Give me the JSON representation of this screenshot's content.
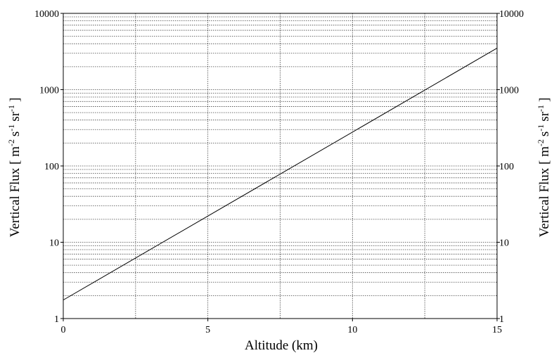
{
  "chart_data": {
    "type": "line",
    "title": "",
    "xlabel": "Altitude (km)",
    "ylabel": {
      "prefix": "Vertical Flux [ m",
      "exp1": "-2",
      "unit2": "s",
      "exp2": "-1",
      "unit3": "sr",
      "exp3": "-1",
      "suffix": "]"
    },
    "xlim": [
      0,
      15
    ],
    "ylim": [
      1,
      10000
    ],
    "yscale": "log",
    "grid": true,
    "grid_style": "dotted",
    "x_ticks": [
      0,
      5,
      10,
      15
    ],
    "x_tick_labels": [
      "0",
      "5",
      "10",
      "15"
    ],
    "x_minor_gridlines": [
      2.5,
      7.5,
      12.5
    ],
    "y_ticks": [
      1,
      10,
      100,
      1000,
      10000
    ],
    "y_tick_labels": [
      "1",
      "10",
      "100",
      "1000",
      "10000"
    ],
    "right_axis_duplicate": true,
    "series": [
      {
        "x": [
          0,
          15
        ],
        "y": [
          1.75,
          3500
        ],
        "color": "#000000"
      }
    ]
  }
}
